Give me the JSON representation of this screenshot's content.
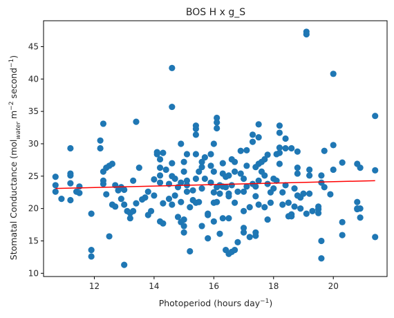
{
  "chart_data": {
    "type": "scatter",
    "title": "BOS H x g_S",
    "xlabel": {
      "text": "Photoperiod (hours day",
      "sup": "−1",
      "close": ")"
    },
    "ylabel": {
      "text": "Stomatal Conductance (mol",
      "sub": "water",
      "mid": " m",
      "sup1": "−2",
      "mid2": " second",
      "sup2": "−1",
      "close": ")"
    },
    "xlim": [
      10.3,
      21.8
    ],
    "ylim": [
      9.5,
      49.0
    ],
    "xticks": [
      12,
      14,
      16,
      18,
      20
    ],
    "yticks": [
      10,
      15,
      20,
      25,
      30,
      35,
      40,
      45
    ],
    "grid": false,
    "point_color": "#1f77b4",
    "trend_color": "#ff0000",
    "trendline": {
      "x": [
        10.7,
        21.4
      ],
      "y": [
        23.1,
        24.3
      ]
    },
    "points": [
      [
        10.7,
        22.6
      ],
      [
        10.7,
        23.6
      ],
      [
        10.7,
        24.9
      ],
      [
        10.9,
        21.5
      ],
      [
        11.2,
        21.3
      ],
      [
        11.2,
        23.9
      ],
      [
        11.2,
        25.1
      ],
      [
        11.2,
        25.4
      ],
      [
        11.2,
        29.3
      ],
      [
        11.4,
        22.6
      ],
      [
        11.5,
        22.4
      ],
      [
        11.5,
        23.4
      ],
      [
        11.9,
        12.6
      ],
      [
        11.9,
        13.6
      ],
      [
        11.9,
        19.2
      ],
      [
        12.2,
        29.3
      ],
      [
        12.2,
        30.5
      ],
      [
        12.3,
        33.1
      ],
      [
        12.3,
        23.8
      ],
      [
        12.3,
        24.3
      ],
      [
        12.3,
        25.7
      ],
      [
        12.4,
        26.3
      ],
      [
        12.4,
        22.2
      ],
      [
        12.5,
        15.7
      ],
      [
        12.5,
        26.6
      ],
      [
        12.6,
        26.9
      ],
      [
        12.6,
        20.6
      ],
      [
        12.7,
        23.6
      ],
      [
        12.7,
        20.3
      ],
      [
        12.8,
        22.8
      ],
      [
        12.9,
        23.3
      ],
      [
        12.9,
        21.5
      ],
      [
        13.0,
        11.3
      ],
      [
        13.0,
        22.9
      ],
      [
        13.0,
        20.6
      ],
      [
        13.1,
        19.6
      ],
      [
        13.2,
        19.3
      ],
      [
        13.2,
        18.5
      ],
      [
        13.3,
        24.3
      ],
      [
        13.3,
        19.6
      ],
      [
        13.4,
        20.8
      ],
      [
        13.4,
        33.4
      ],
      [
        13.5,
        26.3
      ],
      [
        13.6,
        21.4
      ],
      [
        13.7,
        21.7
      ],
      [
        13.8,
        19.0
      ],
      [
        13.8,
        22.6
      ],
      [
        13.9,
        19.6
      ],
      [
        14.0,
        22.0
      ],
      [
        14.0,
        24.5
      ],
      [
        14.1,
        28.4
      ],
      [
        14.1,
        28.7
      ],
      [
        14.2,
        27.6
      ],
      [
        14.2,
        26.3
      ],
      [
        14.2,
        24.0
      ],
      [
        14.2,
        25.1
      ],
      [
        14.2,
        18.0
      ],
      [
        14.3,
        28.6
      ],
      [
        14.3,
        17.7
      ],
      [
        14.3,
        20.8
      ],
      [
        14.4,
        26.0
      ],
      [
        14.5,
        21.5
      ],
      [
        14.5,
        23.8
      ],
      [
        14.6,
        41.7
      ],
      [
        14.6,
        35.7
      ],
      [
        14.6,
        27.0
      ],
      [
        14.6,
        25.0
      ],
      [
        14.6,
        20.6
      ],
      [
        14.7,
        24.6
      ],
      [
        14.7,
        22.0
      ],
      [
        14.8,
        23.3
      ],
      [
        14.8,
        18.7
      ],
      [
        14.9,
        30.0
      ],
      [
        14.9,
        24.0
      ],
      [
        14.9,
        21.0
      ],
      [
        14.9,
        17.9
      ],
      [
        15.0,
        27.2
      ],
      [
        15.0,
        25.7
      ],
      [
        15.0,
        18.3
      ],
      [
        15.0,
        17.3
      ],
      [
        15.0,
        16.3
      ],
      [
        15.1,
        28.4
      ],
      [
        15.1,
        24.3
      ],
      [
        15.1,
        22.6
      ],
      [
        15.1,
        23.6
      ],
      [
        15.2,
        20.2
      ],
      [
        15.2,
        13.4
      ],
      [
        15.3,
        21.3
      ],
      [
        15.3,
        22.8
      ],
      [
        15.4,
        32.8
      ],
      [
        15.4,
        32.3
      ],
      [
        15.4,
        31.4
      ],
      [
        15.4,
        28.4
      ],
      [
        15.4,
        24.6
      ],
      [
        15.4,
        20.9
      ],
      [
        15.5,
        25.7
      ],
      [
        15.5,
        21.0
      ],
      [
        15.6,
        26.4
      ],
      [
        15.6,
        27.2
      ],
      [
        15.6,
        23.1
      ],
      [
        15.6,
        17.3
      ],
      [
        15.7,
        27.9
      ],
      [
        15.7,
        24.6
      ],
      [
        15.8,
        19.2
      ],
      [
        15.8,
        19.0
      ],
      [
        15.8,
        15.4
      ],
      [
        15.9,
        28.4
      ],
      [
        15.9,
        26.6
      ],
      [
        15.9,
        24.0
      ],
      [
        16.0,
        30.0
      ],
      [
        16.0,
        25.7
      ],
      [
        16.0,
        22.5
      ],
      [
        16.0,
        20.9
      ],
      [
        16.0,
        18.0
      ],
      [
        16.1,
        34.0
      ],
      [
        16.1,
        33.3
      ],
      [
        16.1,
        32.4
      ],
      [
        16.1,
        23.3
      ],
      [
        16.1,
        21.0
      ],
      [
        16.2,
        23.6
      ],
      [
        16.2,
        22.3
      ],
      [
        16.2,
        16.1
      ],
      [
        16.3,
        27.0
      ],
      [
        16.3,
        25.4
      ],
      [
        16.3,
        23.4
      ],
      [
        16.3,
        18.5
      ],
      [
        16.4,
        24.9
      ],
      [
        16.4,
        23.3
      ],
      [
        16.4,
        13.6
      ],
      [
        16.5,
        25.1
      ],
      [
        16.5,
        22.3
      ],
      [
        16.5,
        21.9
      ],
      [
        16.5,
        18.5
      ],
      [
        16.5,
        13.0
      ],
      [
        16.6,
        27.6
      ],
      [
        16.6,
        23.6
      ],
      [
        16.6,
        13.3
      ],
      [
        16.7,
        27.2
      ],
      [
        16.7,
        25.7
      ],
      [
        16.7,
        20.9
      ],
      [
        16.7,
        13.6
      ],
      [
        16.8,
        22.6
      ],
      [
        16.8,
        14.8
      ],
      [
        16.9,
        28.9
      ],
      [
        16.9,
        25.4
      ],
      [
        17.0,
        24.6
      ],
      [
        17.0,
        22.6
      ],
      [
        17.0,
        19.6
      ],
      [
        17.0,
        17.0
      ],
      [
        17.0,
        16.3
      ],
      [
        17.1,
        29.0
      ],
      [
        17.1,
        26.6
      ],
      [
        17.1,
        23.4
      ],
      [
        17.2,
        20.2
      ],
      [
        17.2,
        15.6
      ],
      [
        17.3,
        31.4
      ],
      [
        17.3,
        30.3
      ],
      [
        17.3,
        23.8
      ],
      [
        17.4,
        26.4
      ],
      [
        17.4,
        23.4
      ],
      [
        17.4,
        21.9
      ],
      [
        17.4,
        16.3
      ],
      [
        17.4,
        15.8
      ],
      [
        17.5,
        33.0
      ],
      [
        17.5,
        31.0
      ],
      [
        17.5,
        26.9
      ],
      [
        17.5,
        24.3
      ],
      [
        17.5,
        20.6
      ],
      [
        17.6,
        27.2
      ],
      [
        17.6,
        25.7
      ],
      [
        17.7,
        27.6
      ],
      [
        17.7,
        25.1
      ],
      [
        17.7,
        20.2
      ],
      [
        17.8,
        28.3
      ],
      [
        17.8,
        23.8
      ],
      [
        17.8,
        18.3
      ],
      [
        17.9,
        22.5
      ],
      [
        17.9,
        20.9
      ],
      [
        18.0,
        24.6
      ],
      [
        18.0,
        23.1
      ],
      [
        18.1,
        28.4
      ],
      [
        18.1,
        24.3
      ],
      [
        18.2,
        32.8
      ],
      [
        18.2,
        31.7
      ],
      [
        18.2,
        29.4
      ],
      [
        18.2,
        28.6
      ],
      [
        18.2,
        26.9
      ],
      [
        18.3,
        22.5
      ],
      [
        18.3,
        20.6
      ],
      [
        18.4,
        30.8
      ],
      [
        18.4,
        29.3
      ],
      [
        18.4,
        23.6
      ],
      [
        18.5,
        20.9
      ],
      [
        18.5,
        18.8
      ],
      [
        18.6,
        29.3
      ],
      [
        18.6,
        19.1
      ],
      [
        18.6,
        18.8
      ],
      [
        18.7,
        23.1
      ],
      [
        18.7,
        20.3
      ],
      [
        18.8,
        28.8
      ],
      [
        18.8,
        26.3
      ],
      [
        18.8,
        25.4
      ],
      [
        18.8,
        22.0
      ],
      [
        18.9,
        21.7
      ],
      [
        18.9,
        20.0
      ],
      [
        19.0,
        22.3
      ],
      [
        19.1,
        47.3
      ],
      [
        19.1,
        46.9
      ],
      [
        19.1,
        19.2
      ],
      [
        19.2,
        25.1
      ],
      [
        19.2,
        26.0
      ],
      [
        19.2,
        22.3
      ],
      [
        19.3,
        19.6
      ],
      [
        19.5,
        20.3
      ],
      [
        19.5,
        19.9
      ],
      [
        19.5,
        19.3
      ],
      [
        19.6,
        25.1
      ],
      [
        19.6,
        24.0
      ],
      [
        19.6,
        15.0
      ],
      [
        19.6,
        12.3
      ],
      [
        19.7,
        28.9
      ],
      [
        19.7,
        23.3
      ],
      [
        19.9,
        22.2
      ],
      [
        20.0,
        26.0
      ],
      [
        20.0,
        29.8
      ],
      [
        20.0,
        40.8
      ],
      [
        20.3,
        27.1
      ],
      [
        20.3,
        17.9
      ],
      [
        20.3,
        15.9
      ],
      [
        20.8,
        26.9
      ],
      [
        20.8,
        21.0
      ],
      [
        20.8,
        20.0
      ],
      [
        20.8,
        19.9
      ],
      [
        20.9,
        26.3
      ],
      [
        20.9,
        18.6
      ],
      [
        20.9,
        20.0
      ],
      [
        21.4,
        34.3
      ],
      [
        21.4,
        25.9
      ],
      [
        21.4,
        15.6
      ]
    ]
  }
}
